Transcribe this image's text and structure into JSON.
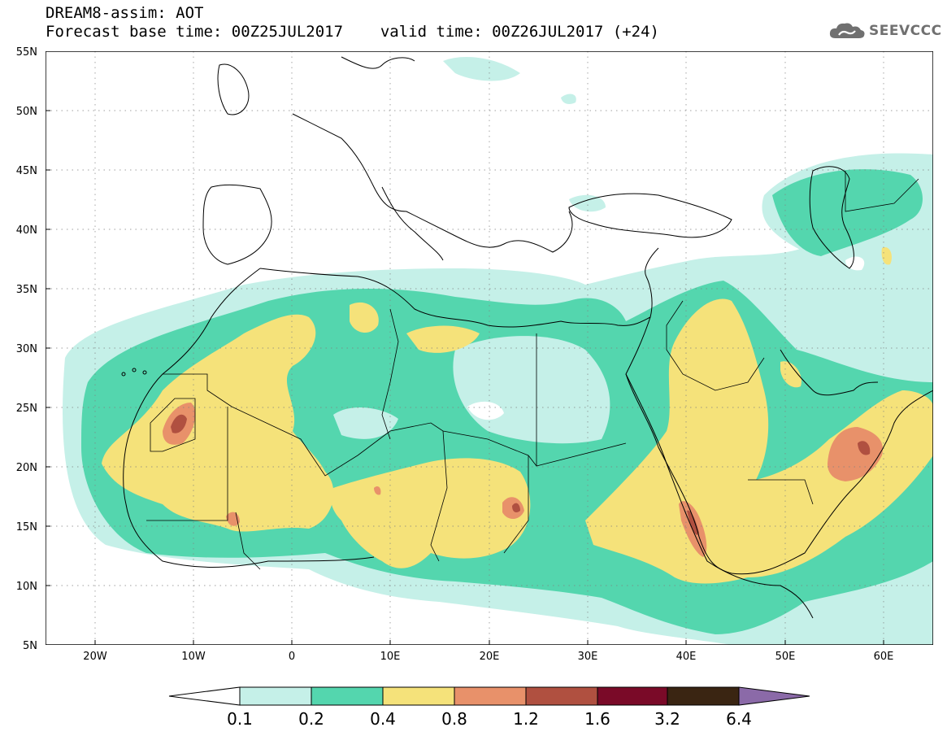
{
  "header": {
    "title": "DREAM8-assim: AOT",
    "base_time_label": "Forecast base time: 00Z25JUL2017",
    "valid_time_label": "valid time: 00Z26JUL2017 (+24)"
  },
  "logo": {
    "text": "SEEVCCC",
    "icon": "cloud-icon"
  },
  "map": {
    "lon_range": [
      -25,
      65
    ],
    "lat_range": [
      5,
      55
    ],
    "x_ticks": [
      "20W",
      "10W",
      "0",
      "10E",
      "20E",
      "30E",
      "40E",
      "50E",
      "60E"
    ],
    "y_ticks": [
      "55N",
      "50N",
      "45N",
      "40N",
      "35N",
      "30N",
      "25N",
      "20N",
      "15N",
      "10N",
      "5N"
    ],
    "grid": "dotted"
  },
  "colorbar": {
    "labels": [
      "0.1",
      "0.2",
      "0.4",
      "0.8",
      "1.2",
      "1.6",
      "3.2",
      "6.4"
    ],
    "colors": [
      "#ffffff",
      "#c5f0e8",
      "#54d6ae",
      "#f5e27a",
      "#e8916a",
      "#b05040",
      "#7a0a28",
      "#3a2512",
      "#8b6aa8"
    ]
  }
}
